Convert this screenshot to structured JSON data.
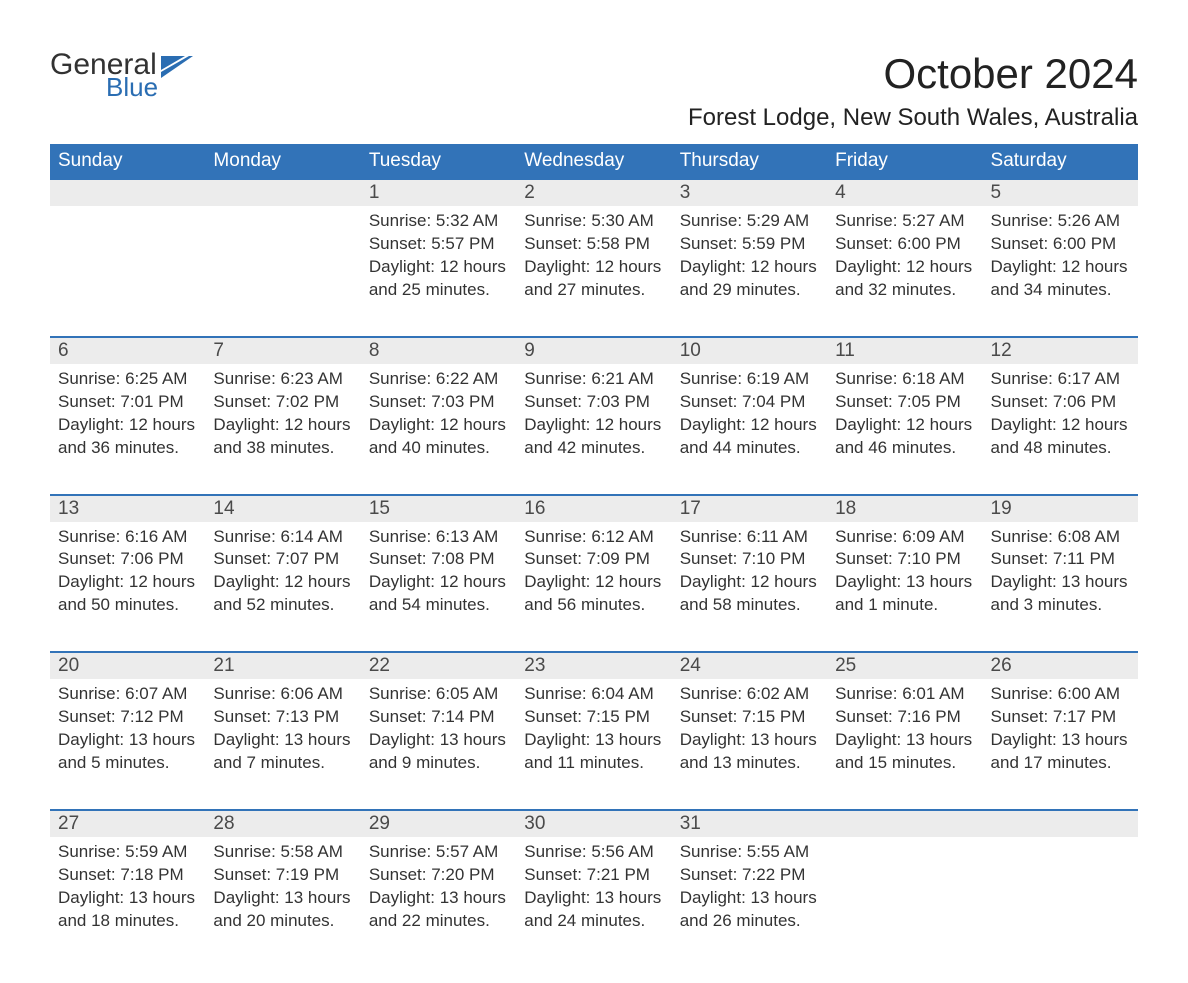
{
  "logo": {
    "word1": "General",
    "word2": "Blue",
    "word1_color": "#323232",
    "word2_color": "#2a6db2",
    "flag_color": "#2a6db2"
  },
  "header": {
    "title": "October 2024",
    "location": "Forest Lodge, New South Wales, Australia"
  },
  "calendar": {
    "type": "table",
    "header_bg": "#3273b8",
    "header_text_color": "#ffffff",
    "daynum_bg": "#ececec",
    "border_top_color": "#3273b8",
    "body_text_color": "#333333",
    "background_color": "#ffffff",
    "columns": [
      "Sunday",
      "Monday",
      "Tuesday",
      "Wednesday",
      "Thursday",
      "Friday",
      "Saturday"
    ],
    "weeks": [
      [
        {
          "day": "",
          "lines": []
        },
        {
          "day": "",
          "lines": []
        },
        {
          "day": "1",
          "lines": [
            "Sunrise: 5:32 AM",
            "Sunset: 5:57 PM",
            "Daylight: 12 hours and 25 minutes."
          ]
        },
        {
          "day": "2",
          "lines": [
            "Sunrise: 5:30 AM",
            "Sunset: 5:58 PM",
            "Daylight: 12 hours and 27 minutes."
          ]
        },
        {
          "day": "3",
          "lines": [
            "Sunrise: 5:29 AM",
            "Sunset: 5:59 PM",
            "Daylight: 12 hours and 29 minutes."
          ]
        },
        {
          "day": "4",
          "lines": [
            "Sunrise: 5:27 AM",
            "Sunset: 6:00 PM",
            "Daylight: 12 hours and 32 minutes."
          ]
        },
        {
          "day": "5",
          "lines": [
            "Sunrise: 5:26 AM",
            "Sunset: 6:00 PM",
            "Daylight: 12 hours and 34 minutes."
          ]
        }
      ],
      [
        {
          "day": "6",
          "lines": [
            "Sunrise: 6:25 AM",
            "Sunset: 7:01 PM",
            "Daylight: 12 hours and 36 minutes."
          ]
        },
        {
          "day": "7",
          "lines": [
            "Sunrise: 6:23 AM",
            "Sunset: 7:02 PM",
            "Daylight: 12 hours and 38 minutes."
          ]
        },
        {
          "day": "8",
          "lines": [
            "Sunrise: 6:22 AM",
            "Sunset: 7:03 PM",
            "Daylight: 12 hours and 40 minutes."
          ]
        },
        {
          "day": "9",
          "lines": [
            "Sunrise: 6:21 AM",
            "Sunset: 7:03 PM",
            "Daylight: 12 hours and 42 minutes."
          ]
        },
        {
          "day": "10",
          "lines": [
            "Sunrise: 6:19 AM",
            "Sunset: 7:04 PM",
            "Daylight: 12 hours and 44 minutes."
          ]
        },
        {
          "day": "11",
          "lines": [
            "Sunrise: 6:18 AM",
            "Sunset: 7:05 PM",
            "Daylight: 12 hours and 46 minutes."
          ]
        },
        {
          "day": "12",
          "lines": [
            "Sunrise: 6:17 AM",
            "Sunset: 7:06 PM",
            "Daylight: 12 hours and 48 minutes."
          ]
        }
      ],
      [
        {
          "day": "13",
          "lines": [
            "Sunrise: 6:16 AM",
            "Sunset: 7:06 PM",
            "Daylight: 12 hours and 50 minutes."
          ]
        },
        {
          "day": "14",
          "lines": [
            "Sunrise: 6:14 AM",
            "Sunset: 7:07 PM",
            "Daylight: 12 hours and 52 minutes."
          ]
        },
        {
          "day": "15",
          "lines": [
            "Sunrise: 6:13 AM",
            "Sunset: 7:08 PM",
            "Daylight: 12 hours and 54 minutes."
          ]
        },
        {
          "day": "16",
          "lines": [
            "Sunrise: 6:12 AM",
            "Sunset: 7:09 PM",
            "Daylight: 12 hours and 56 minutes."
          ]
        },
        {
          "day": "17",
          "lines": [
            "Sunrise: 6:11 AM",
            "Sunset: 7:10 PM",
            "Daylight: 12 hours and 58 minutes."
          ]
        },
        {
          "day": "18",
          "lines": [
            "Sunrise: 6:09 AM",
            "Sunset: 7:10 PM",
            "Daylight: 13 hours and 1 minute."
          ]
        },
        {
          "day": "19",
          "lines": [
            "Sunrise: 6:08 AM",
            "Sunset: 7:11 PM",
            "Daylight: 13 hours and 3 minutes."
          ]
        }
      ],
      [
        {
          "day": "20",
          "lines": [
            "Sunrise: 6:07 AM",
            "Sunset: 7:12 PM",
            "Daylight: 13 hours and 5 minutes."
          ]
        },
        {
          "day": "21",
          "lines": [
            "Sunrise: 6:06 AM",
            "Sunset: 7:13 PM",
            "Daylight: 13 hours and 7 minutes."
          ]
        },
        {
          "day": "22",
          "lines": [
            "Sunrise: 6:05 AM",
            "Sunset: 7:14 PM",
            "Daylight: 13 hours and 9 minutes."
          ]
        },
        {
          "day": "23",
          "lines": [
            "Sunrise: 6:04 AM",
            "Sunset: 7:15 PM",
            "Daylight: 13 hours and 11 minutes."
          ]
        },
        {
          "day": "24",
          "lines": [
            "Sunrise: 6:02 AM",
            "Sunset: 7:15 PM",
            "Daylight: 13 hours and 13 minutes."
          ]
        },
        {
          "day": "25",
          "lines": [
            "Sunrise: 6:01 AM",
            "Sunset: 7:16 PM",
            "Daylight: 13 hours and 15 minutes."
          ]
        },
        {
          "day": "26",
          "lines": [
            "Sunrise: 6:00 AM",
            "Sunset: 7:17 PM",
            "Daylight: 13 hours and 17 minutes."
          ]
        }
      ],
      [
        {
          "day": "27",
          "lines": [
            "Sunrise: 5:59 AM",
            "Sunset: 7:18 PM",
            "Daylight: 13 hours and 18 minutes."
          ]
        },
        {
          "day": "28",
          "lines": [
            "Sunrise: 5:58 AM",
            "Sunset: 7:19 PM",
            "Daylight: 13 hours and 20 minutes."
          ]
        },
        {
          "day": "29",
          "lines": [
            "Sunrise: 5:57 AM",
            "Sunset: 7:20 PM",
            "Daylight: 13 hours and 22 minutes."
          ]
        },
        {
          "day": "30",
          "lines": [
            "Sunrise: 5:56 AM",
            "Sunset: 7:21 PM",
            "Daylight: 13 hours and 24 minutes."
          ]
        },
        {
          "day": "31",
          "lines": [
            "Sunrise: 5:55 AM",
            "Sunset: 7:22 PM",
            "Daylight: 13 hours and 26 minutes."
          ]
        },
        {
          "day": "",
          "lines": []
        },
        {
          "day": "",
          "lines": []
        }
      ]
    ]
  }
}
